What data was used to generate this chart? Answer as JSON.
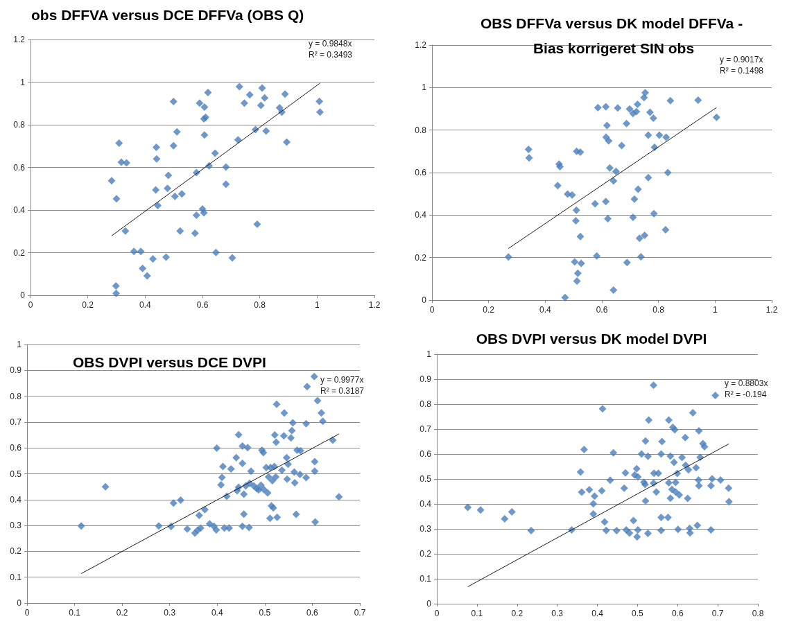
{
  "chart_data": [
    {
      "type": "scatter",
      "title": "obs DFFVA versus DCE DFFVa (OBS Q)",
      "annotations": [
        "y = 0.9848x",
        "R² = 0.3493"
      ],
      "marker": "diamond",
      "grid": "y",
      "xlim": [
        0,
        1.2
      ],
      "xticks": [
        0,
        0.2,
        0.4,
        0.6,
        0.8,
        1,
        1.2
      ],
      "ylim": [
        0,
        1.2
      ],
      "yticks": [
        0,
        0.2,
        0.4,
        0.6,
        0.8,
        1,
        1.2
      ],
      "series": [
        {
          "color": "#4a7ebb",
          "x": [
            0.283,
            0.309,
            0.317,
            0.335,
            0.3,
            0.331,
            0.361,
            0.385,
            0.391,
            0.407,
            0.427,
            0.298,
            0.299,
            0.439,
            0.44,
            0.437,
            0.444,
            0.481,
            0.478,
            0.473,
            0.499,
            0.499,
            0.511,
            0.504,
            0.528,
            0.522,
            0.574,
            0.579,
            0.579,
            0.6,
            0.605,
            0.59,
            0.607,
            0.605,
            0.611,
            0.607,
            0.619,
            0.623,
            0.644,
            0.647,
            0.682,
            0.682,
            0.704,
            0.724,
            0.729,
            0.746,
            0.765,
            0.785,
            0.791,
            0.804,
            0.808,
            0.817,
            0.822,
            0.869,
            0.877,
            0.888,
            0.894,
            1.008,
            1.01
          ],
          "values": [
            0.537,
            0.714,
            0.624,
            0.621,
            0.453,
            0.302,
            0.206,
            0.206,
            0.126,
            0.091,
            0.171,
            0.044,
            0.009,
            0.694,
            0.64,
            0.494,
            0.421,
            0.563,
            0.502,
            0.179,
            0.909,
            0.702,
            0.767,
            0.464,
            0.476,
            0.302,
            0.291,
            0.576,
            0.376,
            0.405,
            0.387,
            0.902,
            0.883,
            0.828,
            0.835,
            0.752,
            0.951,
            0.607,
            0.667,
            0.201,
            0.602,
            0.521,
            0.176,
            0.729,
            0.979,
            0.902,
            0.941,
            0.777,
            0.333,
            0.891,
            0.972,
            0.926,
            0.771,
            0.88,
            0.859,
            0.944,
            0.719,
            0.91,
            0.859
          ]
        },
        {
          "type": "line",
          "color": "#1a1a1a",
          "marker": "none",
          "x": [
            0.283,
            1.01
          ],
          "values": [
            0.279,
            0.995
          ]
        }
      ]
    },
    {
      "type": "scatter",
      "title": "OBS DFFVa versus DK model DFFVa - Bias korrigeret SIN obs",
      "annotations": [
        "y = 0.9017x",
        "R² = 0.1498"
      ],
      "marker": "diamond",
      "grid": "y",
      "xlim": [
        0,
        1.2
      ],
      "xticks": [
        0,
        0.2,
        0.4,
        0.6,
        0.8,
        1,
        1.2
      ],
      "ylim": [
        0,
        1.2
      ],
      "yticks": [
        0,
        0.2,
        0.4,
        0.6,
        0.8,
        1,
        1.2
      ],
      "series": [
        {
          "color": "#4a7ebb",
          "x": [
            0.27,
            0.341,
            0.343,
            0.444,
            0.449,
            0.452,
            0.479,
            0.495,
            0.47,
            0.511,
            0.524,
            0.51,
            0.508,
            0.524,
            0.504,
            0.527,
            0.515,
            0.512,
            0.576,
            0.582,
            0.586,
            0.614,
            0.618,
            0.615,
            0.624,
            0.614,
            0.621,
            0.628,
            0.641,
            0.65,
            0.641,
            0.656,
            0.67,
            0.687,
            0.689,
            0.698,
            0.71,
            0.722,
            0.726,
            0.71,
            0.715,
            0.728,
            0.733,
            0.751,
            0.738,
            0.749,
            0.753,
            0.77,
            0.782,
            0.764,
            0.764,
            0.786,
            0.784,
            0.803,
            0.827,
            0.833,
            0.825,
            0.842,
            0.94,
            1.005
          ],
          "values": [
            0.203,
            0.709,
            0.669,
            0.539,
            0.64,
            0.628,
            0.499,
            0.495,
            0.012,
            0.7,
            0.696,
            0.423,
            0.373,
            0.299,
            0.18,
            0.173,
            0.126,
            0.09,
            0.453,
            0.208,
            0.906,
            0.91,
            0.822,
            0.766,
            0.749,
            0.464,
            0.383,
            0.622,
            0.561,
            0.606,
            0.047,
            0.904,
            0.727,
            0.831,
            0.177,
            0.899,
            0.878,
            0.887,
            0.921,
            0.39,
            0.475,
            0.522,
            0.291,
            0.305,
            0.204,
            0.953,
            0.976,
            0.884,
            0.856,
            0.776,
            0.576,
            0.719,
            0.407,
            0.776,
            0.766,
            0.6,
            0.331,
            0.938,
            0.941,
            0.86
          ]
        },
        {
          "type": "line",
          "color": "#1a1a1a",
          "marker": "none",
          "x": [
            0.27,
            1.005
          ],
          "values": [
            0.243,
            0.906
          ]
        }
      ]
    },
    {
      "type": "scatter",
      "title": "OBS DVPI versus DCE DVPI",
      "annotations": [
        "y = 0.9977x",
        "R² = 0.3187"
      ],
      "marker": "diamond",
      "grid": "y",
      "xlim": [
        0,
        0.7
      ],
      "xticks": [
        0,
        0.1,
        0.2,
        0.3,
        0.4,
        0.5,
        0.6,
        0.7
      ],
      "ylim": [
        0,
        1
      ],
      "yticks": [
        0,
        0.1,
        0.2,
        0.3,
        0.4,
        0.5,
        0.6,
        0.7,
        0.8,
        0.9,
        1
      ],
      "series": [
        {
          "color": "#4a7ebb",
          "x": [
            0.114,
            0.165,
            0.277,
            0.303,
            0.308,
            0.323,
            0.337,
            0.353,
            0.359,
            0.365,
            0.362,
            0.374,
            0.384,
            0.393,
            0.398,
            0.399,
            0.408,
            0.41,
            0.412,
            0.415,
            0.42,
            0.425,
            0.429,
            0.44,
            0.445,
            0.442,
            0.445,
            0.453,
            0.453,
            0.453,
            0.456,
            0.456,
            0.46,
            0.464,
            0.467,
            0.468,
            0.471,
            0.477,
            0.483,
            0.487,
            0.492,
            0.494,
            0.497,
            0.498,
            0.503,
            0.506,
            0.508,
            0.511,
            0.512,
            0.514,
            0.516,
            0.518,
            0.52,
            0.521,
            0.523,
            0.524,
            0.525,
            0.526,
            0.536,
            0.54,
            0.541,
            0.546,
            0.547,
            0.549,
            0.555,
            0.557,
            0.559,
            0.562,
            0.563,
            0.566,
            0.568,
            0.575,
            0.574,
            0.587,
            0.587,
            0.589,
            0.604,
            0.605,
            0.605,
            0.606,
            0.611,
            0.619,
            0.622,
            0.643,
            0.656
          ],
          "values": [
            0.298,
            0.45,
            0.298,
            0.296,
            0.387,
            0.398,
            0.286,
            0.271,
            0.282,
            0.29,
            0.339,
            0.361,
            0.306,
            0.297,
            0.283,
            0.599,
            0.457,
            0.486,
            0.528,
            0.29,
            0.413,
            0.29,
            0.519,
            0.562,
            0.651,
            0.434,
            0.448,
            0.54,
            0.607,
            0.297,
            0.344,
            0.421,
            0.453,
            0.601,
            0.292,
            0.463,
            0.51,
            0.453,
            0.443,
            0.438,
            0.456,
            0.591,
            0.582,
            0.439,
            0.524,
            0.426,
            0.488,
            0.328,
            0.524,
            0.376,
            0.473,
            0.368,
            0.528,
            0.65,
            0.488,
            0.622,
            0.769,
            0.332,
            0.514,
            0.647,
            0.735,
            0.562,
            0.479,
            0.537,
            0.639,
            0.667,
            0.697,
            0.507,
            0.465,
            0.343,
            0.591,
            0.589,
            0.497,
            0.485,
            0.694,
            0.837,
            0.876,
            0.547,
            0.51,
            0.314,
            0.783,
            0.735,
            0.703,
            0.63,
            0.411
          ]
        },
        {
          "type": "line",
          "color": "#1a1a1a",
          "marker": "none",
          "x": [
            0.114,
            0.656
          ],
          "values": [
            0.114,
            0.654
          ]
        }
      ]
    },
    {
      "type": "scatter",
      "title": "OBS DVPI versus DK model DVPI",
      "annotations": [
        "y = 0.8803x",
        "R² = -0.194"
      ],
      "marker": "diamond",
      "grid": "y",
      "xlim": [
        0,
        0.8
      ],
      "xticks": [
        0,
        0.1,
        0.2,
        0.3,
        0.4,
        0.5,
        0.6,
        0.7,
        0.8
      ],
      "ylim": [
        0,
        1
      ],
      "yticks": [
        0,
        0.1,
        0.2,
        0.3,
        0.4,
        0.5,
        0.6,
        0.7,
        0.8,
        0.9,
        1
      ],
      "series": [
        {
          "color": "#4a7ebb",
          "x": [
            0.077,
            0.109,
            0.169,
            0.187,
            0.235,
            0.336,
            0.358,
            0.361,
            0.367,
            0.38,
            0.393,
            0.39,
            0.39,
            0.411,
            0.413,
            0.418,
            0.422,
            0.432,
            0.44,
            0.448,
            0.467,
            0.47,
            0.472,
            0.48,
            0.49,
            0.493,
            0.498,
            0.501,
            0.501,
            0.499,
            0.51,
            0.516,
            0.519,
            0.52,
            0.52,
            0.526,
            0.528,
            0.526,
            0.54,
            0.541,
            0.54,
            0.547,
            0.552,
            0.559,
            0.559,
            0.561,
            0.559,
            0.576,
            0.578,
            0.578,
            0.582,
            0.582,
            0.586,
            0.588,
            0.593,
            0.591,
            0.595,
            0.595,
            0.599,
            0.604,
            0.601,
            0.611,
            0.619,
            0.62,
            0.625,
            0.627,
            0.63,
            0.631,
            0.638,
            0.646,
            0.649,
            0.653,
            0.652,
            0.653,
            0.656,
            0.663,
            0.667,
            0.683,
            0.683,
            0.686,
            0.694,
            0.707,
            0.727,
            0.728
          ],
          "values": [
            0.386,
            0.376,
            0.34,
            0.368,
            0.293,
            0.296,
            0.528,
            0.447,
            0.618,
            0.457,
            0.431,
            0.401,
            0.36,
            0.453,
            0.781,
            0.328,
            0.294,
            0.495,
            0.605,
            0.293,
            0.463,
            0.524,
            0.296,
            0.283,
            0.333,
            0.516,
            0.541,
            0.508,
            0.296,
            0.268,
            0.6,
            0.487,
            0.478,
            0.412,
            0.652,
            0.591,
            0.736,
            0.282,
            0.876,
            0.523,
            0.483,
            0.448,
            0.523,
            0.346,
            0.294,
            0.65,
            0.6,
            0.346,
            0.736,
            0.485,
            0.592,
            0.423,
            0.458,
            0.707,
            0.697,
            0.567,
            0.486,
            0.448,
            0.522,
            0.436,
            0.298,
            0.586,
            0.666,
            0.555,
            0.422,
            0.537,
            0.302,
            0.284,
            0.765,
            0.545,
            0.314,
            0.693,
            0.496,
            0.473,
            0.587,
            0.642,
            0.629,
            0.296,
            0.473,
            0.501,
            0.835,
            0.496,
            0.463,
            0.409
          ]
        },
        {
          "type": "line",
          "color": "#1a1a1a",
          "marker": "none",
          "x": [
            0.077,
            0.728
          ],
          "values": [
            0.068,
            0.641
          ]
        }
      ]
    }
  ]
}
